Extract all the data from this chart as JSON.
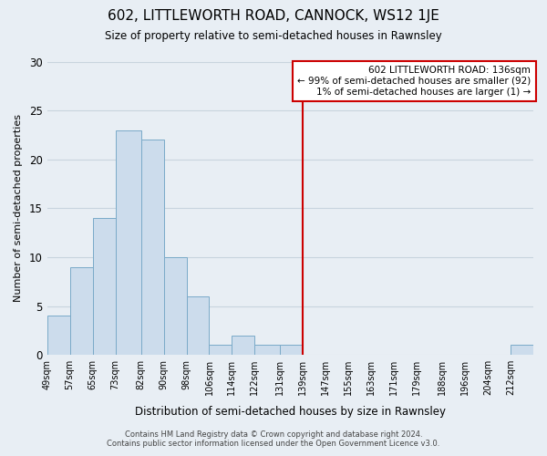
{
  "title": "602, LITTLEWORTH ROAD, CANNOCK, WS12 1JE",
  "subtitle": "Size of property relative to semi-detached houses in Rawnsley",
  "xlabel": "Distribution of semi-detached houses by size in Rawnsley",
  "ylabel": "Number of semi-detached properties",
  "bin_labels": [
    "49sqm",
    "57sqm",
    "65sqm",
    "73sqm",
    "82sqm",
    "90sqm",
    "98sqm",
    "106sqm",
    "114sqm",
    "122sqm",
    "131sqm",
    "139sqm",
    "147sqm",
    "155sqm",
    "163sqm",
    "171sqm",
    "179sqm",
    "188sqm",
    "196sqm",
    "204sqm",
    "212sqm"
  ],
  "bin_edges": [
    49,
    57,
    65,
    73,
    82,
    90,
    98,
    106,
    114,
    122,
    131,
    139,
    147,
    155,
    163,
    171,
    179,
    188,
    196,
    204,
    212,
    220
  ],
  "bar_heights": [
    4,
    9,
    14,
    23,
    22,
    10,
    6,
    1,
    2,
    1,
    1,
    0,
    0,
    0,
    0,
    0,
    0,
    0,
    0,
    0,
    1
  ],
  "bar_color": "#ccdcec",
  "bar_edge_color": "#7aaac8",
  "vline_x": 139,
  "vline_color": "#cc0000",
  "ylim": [
    0,
    30
  ],
  "yticks": [
    0,
    5,
    10,
    15,
    20,
    25,
    30
  ],
  "annotation_title": "602 LITTLEWORTH ROAD: 136sqm",
  "annotation_line1": "← 99% of semi-detached houses are smaller (92)",
  "annotation_line2": "1% of semi-detached houses are larger (1) →",
  "annotation_box_color": "#ffffff",
  "annotation_box_edge": "#cc0000",
  "footnote1": "Contains HM Land Registry data © Crown copyright and database right 2024.",
  "footnote2": "Contains public sector information licensed under the Open Government Licence v3.0.",
  "grid_color": "#c8d4de",
  "background_color": "#e8eef4"
}
